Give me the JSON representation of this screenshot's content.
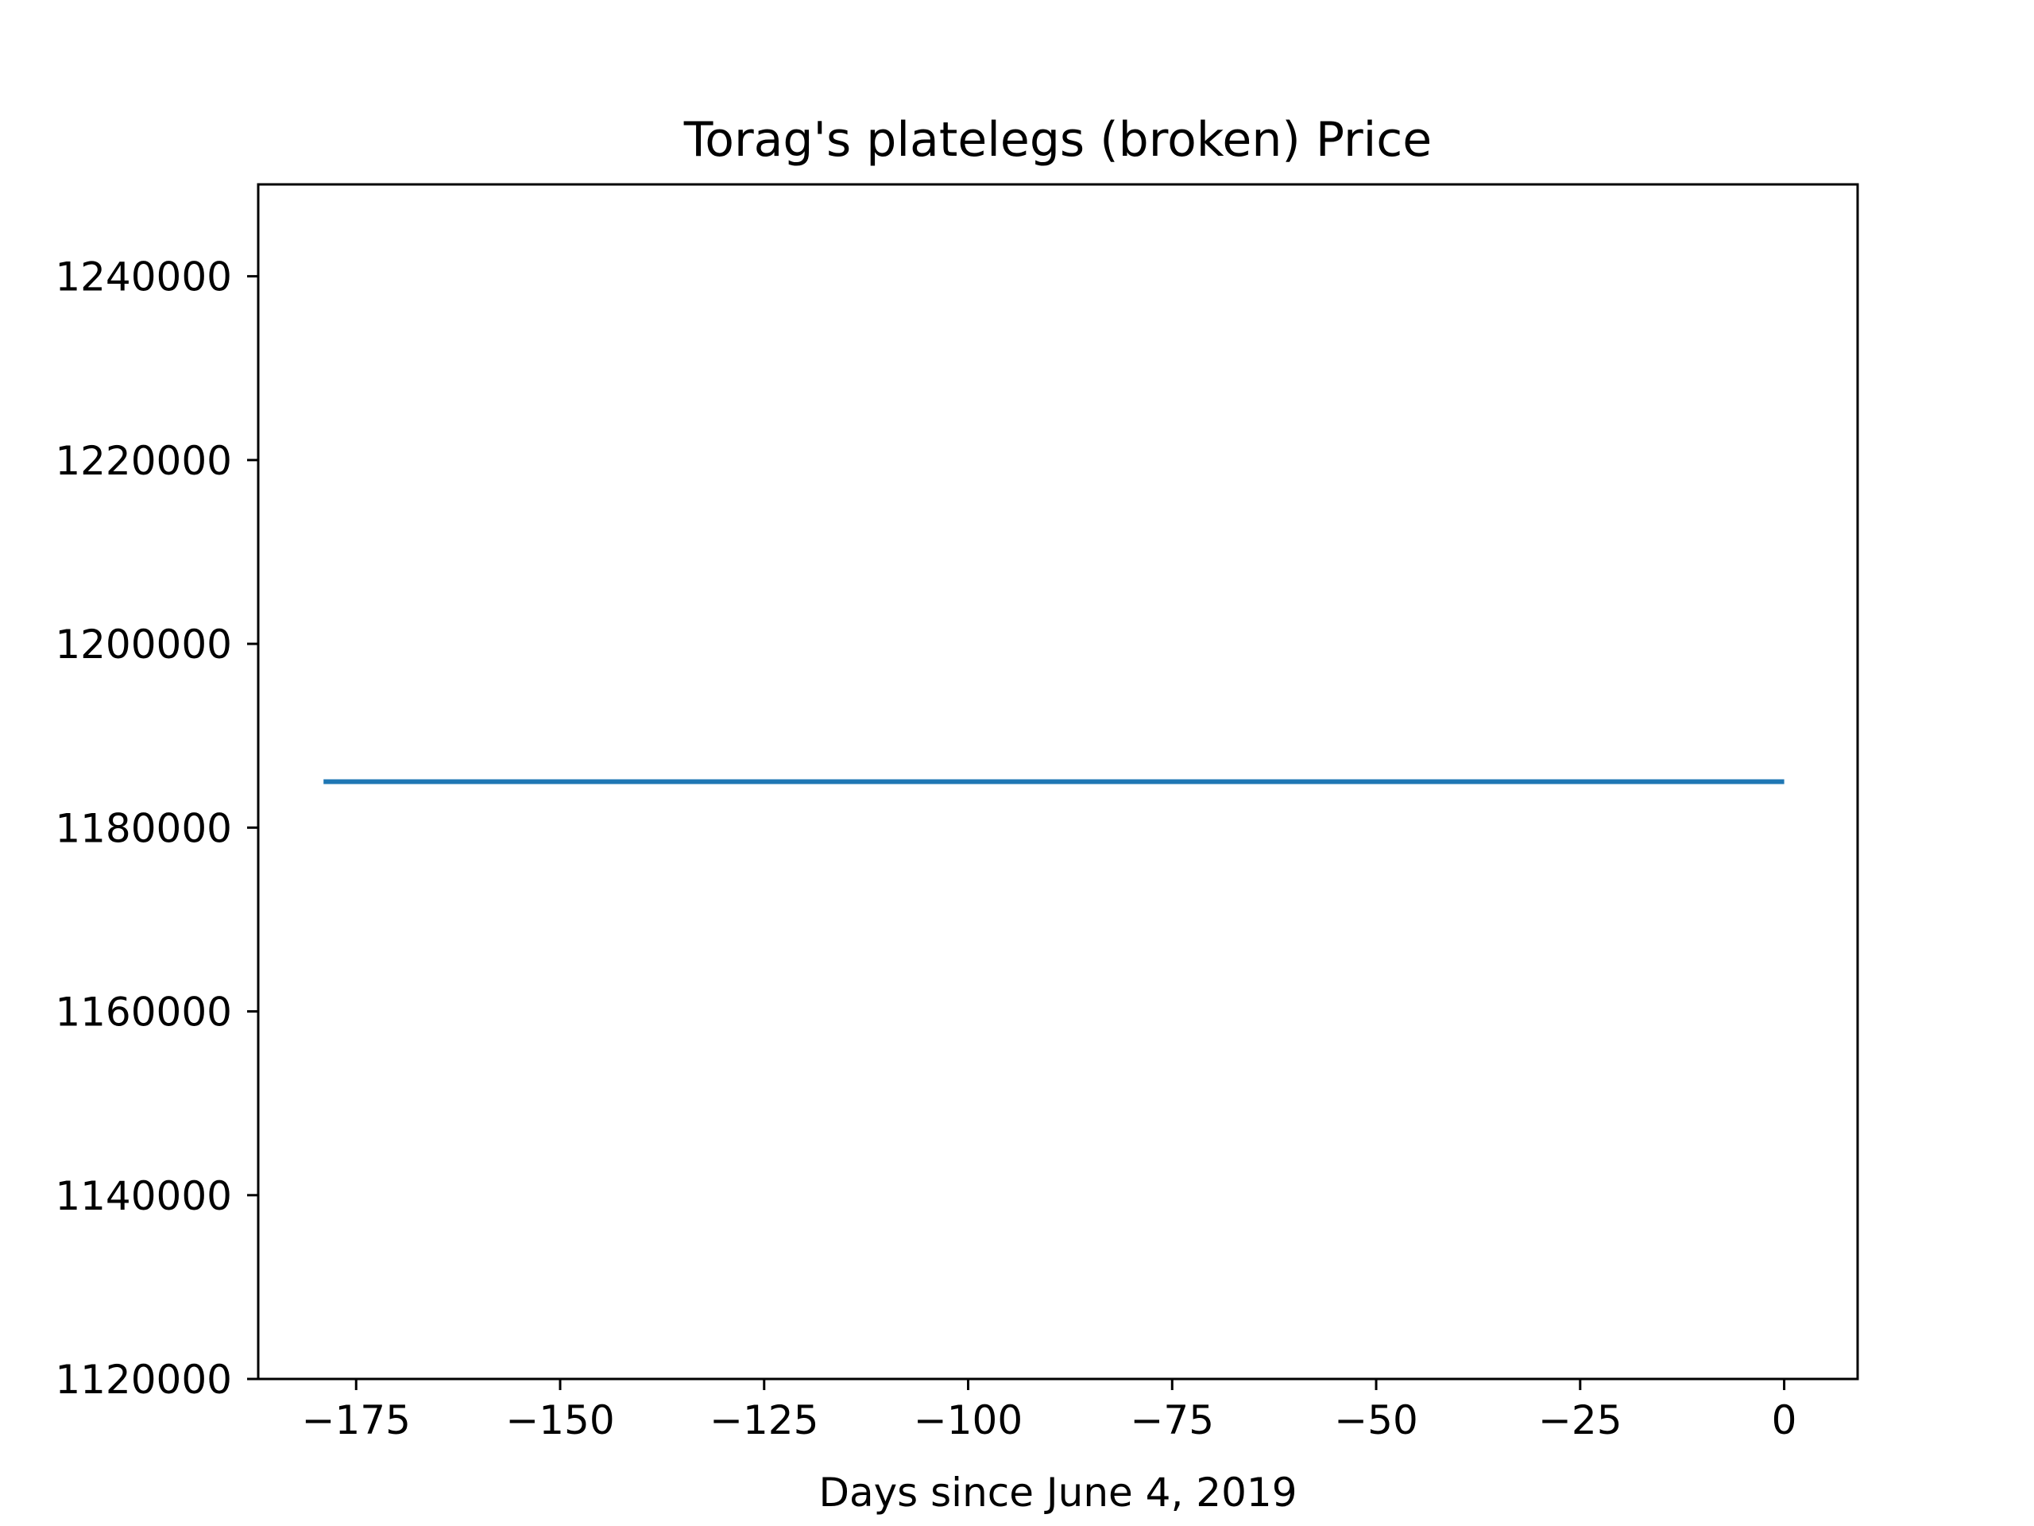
{
  "chart_data": {
    "type": "line",
    "title": "Torag's platelegs (broken) Price",
    "xlabel": "Days since June 4, 2019",
    "ylabel": "",
    "xlim": [
      -187,
      9
    ],
    "ylim": [
      1120000,
      1250000
    ],
    "xticks": [
      -175,
      -150,
      -125,
      -100,
      -75,
      -50,
      -25,
      0
    ],
    "xtick_labels": [
      "−175",
      "−150",
      "−125",
      "−100",
      "−75",
      "−50",
      "−25",
      "0"
    ],
    "yticks": [
      1120000,
      1140000,
      1160000,
      1180000,
      1200000,
      1220000,
      1240000
    ],
    "ytick_labels": [
      "1120000",
      "1140000",
      "1160000",
      "1180000",
      "1200000",
      "1220000",
      "1240000"
    ],
    "grid": false,
    "legend": "none",
    "series": [
      {
        "color": "#1f77b4",
        "x": [
          -179,
          0
        ],
        "y": [
          1185000,
          1185000
        ]
      }
    ]
  }
}
